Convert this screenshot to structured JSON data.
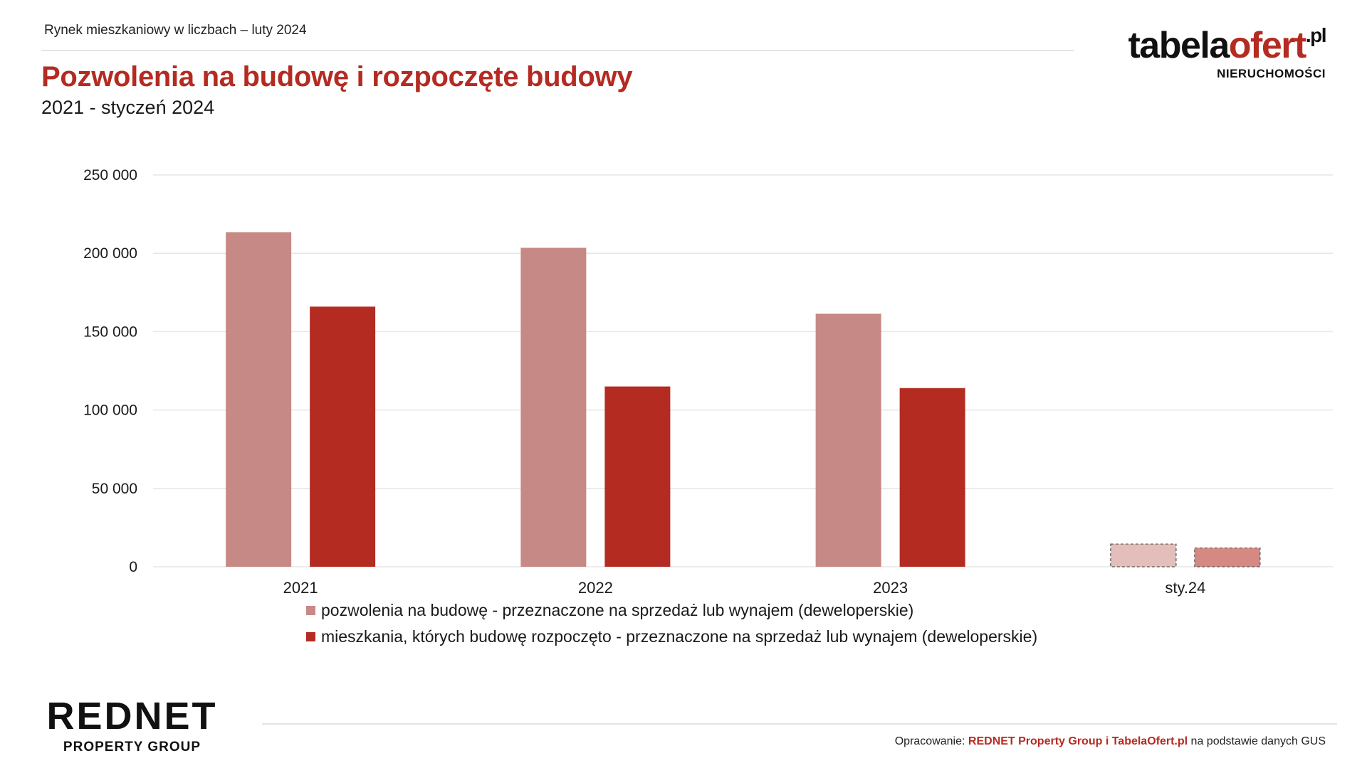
{
  "header": {
    "top_label": "Rynek mieszkaniowy w liczbach – luty 2024",
    "title": "Pozwolenia na budowę i rozpoczęte budowy",
    "subtitle": "2021 - styczeń 2024"
  },
  "brand": {
    "part1": "tabela",
    "part2": "ofert",
    "part3": ".pl",
    "tagline": "NIERUCHOMOŚCI"
  },
  "footer": {
    "logo_main": "REDNET",
    "logo_sub": "PROPERTY GROUP",
    "source_prefix": "Opracowanie:",
    "source_highlight": "REDNET Property Group i TabelaOfert.pl",
    "source_suffix": "na podstawie danych GUS"
  },
  "colors": {
    "accent": "#b42b22",
    "series1": "#c78985",
    "series2": "#b42b22",
    "series1_partial": "#e3bebb",
    "series2_partial": "#d48a82",
    "grid": "#e6e6e6"
  },
  "chart_data": {
    "type": "bar",
    "categories": [
      "2021",
      "2022",
      "2023",
      "sty.24"
    ],
    "series": [
      {
        "name": "pozwolenia na budowę - przeznaczone na sprzedaż lub wynajem (deweloperskie)",
        "values": [
          213500,
          203500,
          161500,
          14500
        ]
      },
      {
        "name": "mieszkania, których budowę rozpoczęto - przeznaczone na sprzedaż lub wynajem (deweloperskie)",
        "values": [
          166000,
          115000,
          114000,
          12000
        ]
      }
    ],
    "partial_category": "sty.24",
    "yticks": [
      "0",
      "50 000",
      "100 000",
      "150 000",
      "200 000",
      "250 000"
    ],
    "ylim": [
      0,
      250000
    ],
    "grid": true,
    "legend": "bottom"
  }
}
